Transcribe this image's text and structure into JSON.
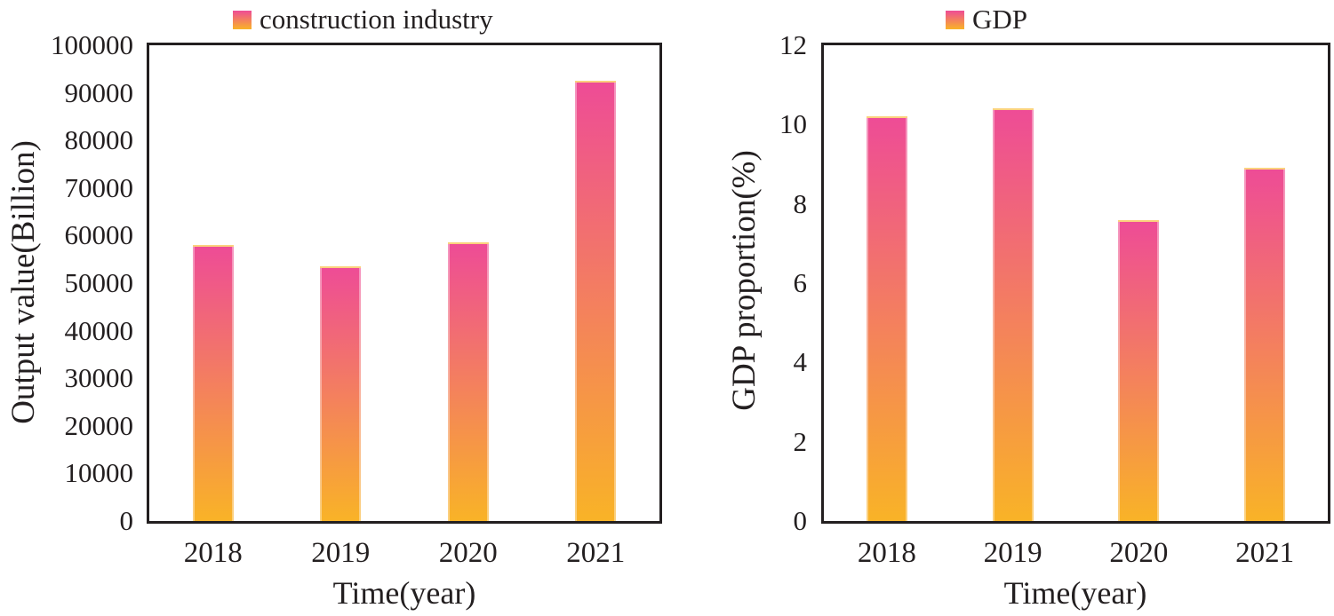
{
  "colors": {
    "bar_gradient_top": "#ee4c96",
    "bar_gradient_bottom": "#f9b327",
    "text": "#231f20",
    "axis_frame": "#231f20",
    "background": "#ffffff"
  },
  "chart_data": [
    {
      "type": "bar",
      "legend": "construction industry",
      "xlabel": "Time(year)",
      "ylabel": "Output value(Billion)",
      "categories": [
        "2018",
        "2019",
        "2020",
        "2021"
      ],
      "values": [
        58000,
        53500,
        58500,
        92500
      ],
      "ylim": [
        0,
        100000
      ],
      "ytick_step": 10000,
      "yticks": [
        "0",
        "10000",
        "20000",
        "30000",
        "40000",
        "50000",
        "60000",
        "70000",
        "80000",
        "90000",
        "100000"
      ],
      "grid": false,
      "legend_position": "top-center",
      "bar_gradient": [
        "#ee4c96",
        "#f9b327"
      ]
    },
    {
      "type": "bar",
      "legend": "GDP",
      "xlabel": "Time(year)",
      "ylabel": "GDP proportion(%)",
      "categories": [
        "2018",
        "2019",
        "2020",
        "2021"
      ],
      "values": [
        10.2,
        10.4,
        7.6,
        8.9
      ],
      "ylim": [
        0,
        12
      ],
      "ytick_step": 2,
      "yticks": [
        "0",
        "2",
        "4",
        "6",
        "8",
        "10",
        "12"
      ],
      "grid": false,
      "legend_position": "top-center",
      "bar_gradient": [
        "#ee4c96",
        "#f9b327"
      ]
    }
  ]
}
